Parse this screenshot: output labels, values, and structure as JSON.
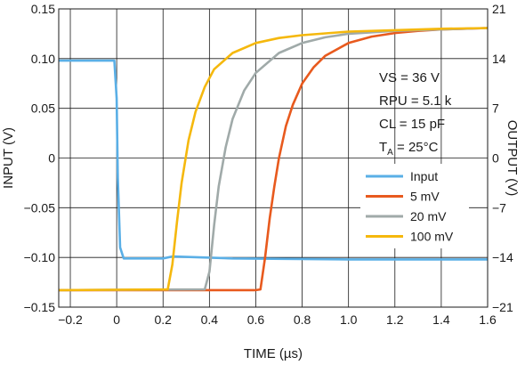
{
  "chart_data": {
    "type": "line",
    "xlabel": "TIME (µs)",
    "ylabel_left": "INPUT (V)",
    "ylabel_right": "OUTPUT (V)",
    "xlim": [
      -0.25,
      1.6
    ],
    "ylim_left": [
      -0.15,
      0.15
    ],
    "ylim_right": [
      -21,
      21
    ],
    "x_ticks": [
      "−0.2",
      "0",
      "0.2",
      "0.4",
      "0.6",
      "0.8",
      "1.0",
      "1.2",
      "1.4",
      "1.6"
    ],
    "x_tick_values": [
      -0.2,
      0,
      0.2,
      0.4,
      0.6,
      0.8,
      1.0,
      1.2,
      1.4,
      1.6
    ],
    "y_left_ticks": [
      "0.15",
      "0.10",
      "0.05",
      "0",
      "−0.05",
      "−0.10",
      "−0.15"
    ],
    "y_left_tick_values": [
      0.15,
      0.1,
      0.05,
      0,
      -0.05,
      -0.1,
      -0.15
    ],
    "y_right_ticks": [
      "21",
      "14",
      "7",
      "0",
      "−7",
      "−14",
      "−21"
    ],
    "y_right_tick_values": [
      21,
      14,
      7,
      0,
      -7,
      -14,
      -21
    ],
    "grid": true,
    "legend_position": "lower-right",
    "annotations": {
      "vs": "VS = 36 V",
      "rpu": "RPU = 5.1 k",
      "cl": "CL = 15 pF",
      "ta_prefix": "T",
      "ta_sub": "A",
      "ta_suffix": " = 25°C"
    },
    "series": [
      {
        "name": "Input",
        "axis": "left",
        "color": "#5aafe6",
        "x": [
          -0.25,
          -0.01,
          0.0,
          0.005,
          0.015,
          0.03,
          0.2,
          0.24,
          0.5,
          1.0,
          1.6
        ],
        "y": [
          0.098,
          0.098,
          0.06,
          -0.02,
          -0.09,
          -0.101,
          -0.101,
          -0.099,
          -0.101,
          -0.102,
          -0.102
        ]
      },
      {
        "name": "5 mV",
        "axis": "right",
        "color": "#e85a1e",
        "x": [
          -0.25,
          0.6,
          0.62,
          0.64,
          0.66,
          0.68,
          0.7,
          0.73,
          0.76,
          0.8,
          0.85,
          0.9,
          1.0,
          1.1,
          1.2,
          1.3,
          1.4,
          1.5,
          1.6
        ],
        "y": [
          -18.6,
          -18.6,
          -18.5,
          -14.0,
          -8.5,
          -4.0,
          0.0,
          4.5,
          7.5,
          10.5,
          12.8,
          14.4,
          16.2,
          17.1,
          17.6,
          17.9,
          18.1,
          18.2,
          18.3
        ]
      },
      {
        "name": "20 mV",
        "axis": "right",
        "color": "#a0aaa9",
        "x": [
          -0.25,
          0.38,
          0.4,
          0.42,
          0.44,
          0.47,
          0.5,
          0.55,
          0.6,
          0.7,
          0.8,
          0.9,
          1.0,
          1.2,
          1.4,
          1.6
        ],
        "y": [
          -18.6,
          -18.5,
          -16.0,
          -9.5,
          -4.0,
          1.5,
          5.5,
          9.5,
          12.0,
          14.8,
          16.2,
          17.0,
          17.5,
          17.9,
          18.1,
          18.3
        ]
      },
      {
        "name": "100 mV",
        "axis": "right",
        "color": "#f5b80d",
        "x": [
          -0.25,
          0.22,
          0.24,
          0.26,
          0.28,
          0.31,
          0.34,
          0.38,
          0.42,
          0.5,
          0.6,
          0.7,
          0.8,
          1.0,
          1.2,
          1.4,
          1.6
        ],
        "y": [
          -18.6,
          -18.5,
          -15.0,
          -9.0,
          -3.5,
          2.5,
          6.5,
          10.0,
          12.5,
          14.8,
          16.2,
          16.9,
          17.3,
          17.8,
          18.0,
          18.2,
          18.3
        ]
      }
    ]
  }
}
